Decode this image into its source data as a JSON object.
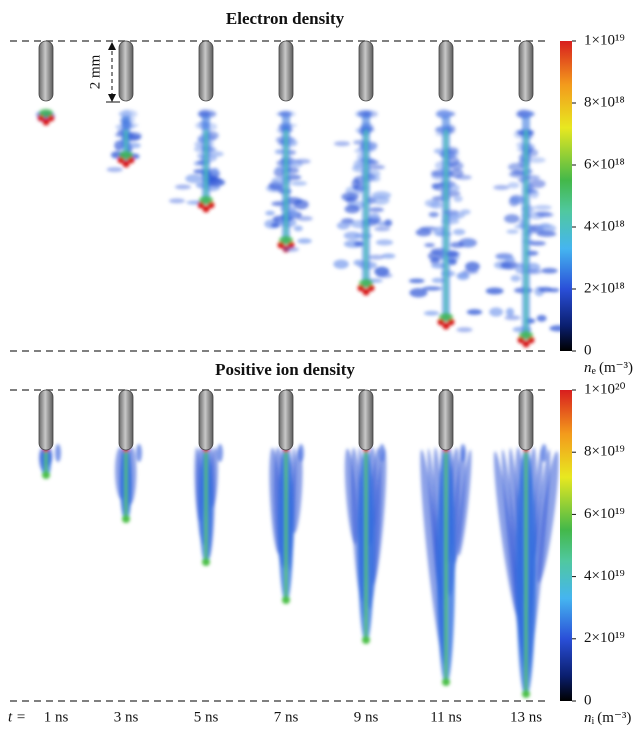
{
  "panels": [
    {
      "title": "Electron density",
      "colorbar": {
        "ticks": [
          "1×10¹⁹",
          "8×10¹⁸",
          "6×10¹⁸",
          "4×10¹⁸",
          "2×10¹⁸",
          "0"
        ],
        "symbol": "n",
        "subscript": "e",
        "unit": "(m⁻³)"
      }
    },
    {
      "title": "Positive ion density",
      "colorbar": {
        "ticks": [
          "1×10²⁰",
          "8×10¹⁹",
          "6×10¹⁹",
          "4×10¹⁹",
          "2×10¹⁹",
          "0"
        ],
        "symbol": "n",
        "subscript": "i",
        "unit": "(m⁻³)"
      }
    }
  ],
  "scale_bar": "2 mm",
  "time_prefix": "t =",
  "times": [
    "1 ns",
    "3 ns",
    "5 ns",
    "7 ns",
    "9 ns",
    "11 ns",
    "13 ns"
  ]
}
